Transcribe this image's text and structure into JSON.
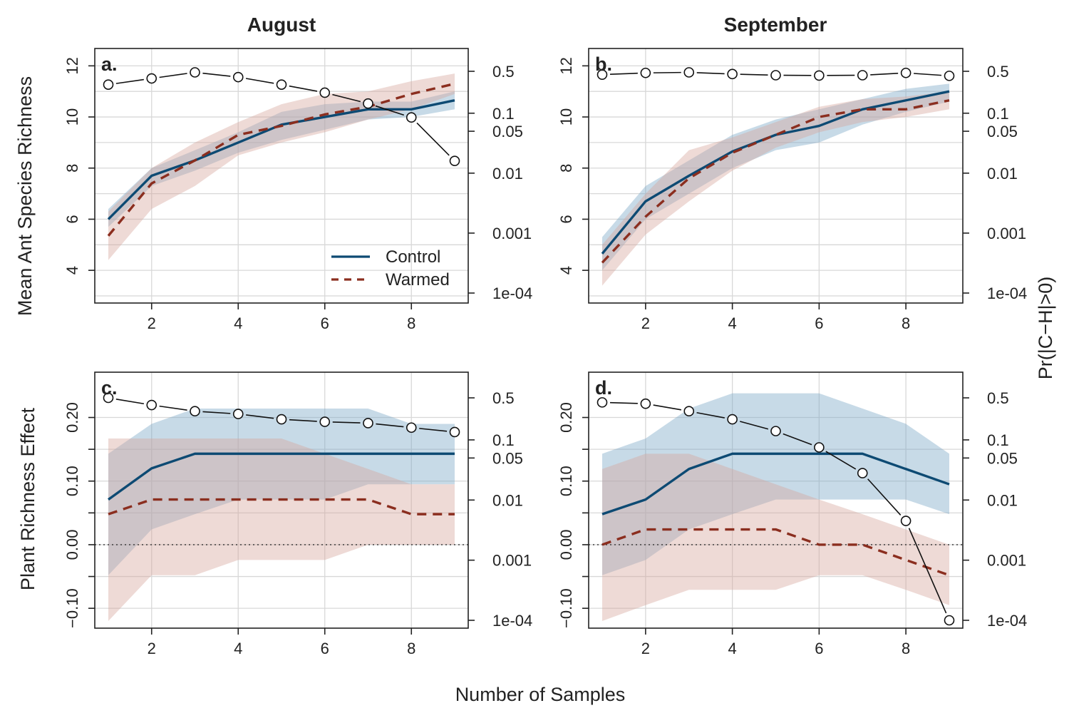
{
  "figure": {
    "xlabel": "Number of Samples",
    "right_axis_label": "Pr(|C−H|>0)",
    "column_titles": [
      "August",
      "September"
    ],
    "legend": {
      "placement": "bottom-right of panel a",
      "entries": [
        {
          "name": "Control",
          "style": "solid"
        },
        {
          "name": "Warmed",
          "style": "dashed"
        }
      ]
    },
    "colors": {
      "control": "#0d4a73",
      "warmed": "#8b2e1f",
      "control_band": "#7aa8c6",
      "warmed_band": "#d7a79e",
      "probability": "#111111",
      "grid": "#d8d8d8"
    }
  },
  "chart_data": [
    {
      "panel": "a.",
      "type": "line",
      "title": "August",
      "ylabel": "Mean Ant Species Richness",
      "x": [
        1,
        2,
        3,
        4,
        5,
        6,
        7,
        8,
        9
      ],
      "xlim": [
        1,
        9
      ],
      "xticks": [
        2,
        4,
        6,
        8
      ],
      "ylim": [
        3,
        12.4
      ],
      "yticks": [
        4,
        6,
        8,
        10,
        12
      ],
      "grid": true,
      "y2_scale": "log",
      "y2_ticks": [
        0.0001,
        0.001,
        0.01,
        0.05,
        0.1,
        0.5
      ],
      "y2_tick_labels": [
        "1e-04",
        "0.001",
        "0.01",
        "0.05",
        "0.1",
        "0.5"
      ],
      "series": [
        {
          "name": "Control",
          "values": [
            6.0,
            7.7,
            8.3,
            9.0,
            9.7,
            10.0,
            10.3,
            10.3,
            10.65
          ],
          "lower": [
            5.7,
            7.3,
            7.9,
            8.6,
            9.1,
            9.5,
            9.9,
            10.0,
            10.3
          ],
          "upper": [
            6.4,
            8.0,
            8.7,
            9.4,
            10.2,
            10.5,
            10.6,
            10.6,
            11.0
          ]
        },
        {
          "name": "Warmed",
          "values": [
            5.35,
            7.4,
            8.3,
            9.3,
            9.65,
            10.1,
            10.4,
            10.9,
            11.3
          ],
          "lower": [
            4.4,
            6.4,
            7.3,
            8.5,
            9.0,
            9.4,
            9.9,
            10.3,
            10.9
          ],
          "upper": [
            6.3,
            8.0,
            9.0,
            9.8,
            10.5,
            10.9,
            11.0,
            11.4,
            11.7
          ]
        },
        {
          "name": "Pr",
          "axis": "right",
          "values": [
            0.3,
            0.38,
            0.48,
            0.4,
            0.3,
            0.22,
            0.145,
            0.085,
            0.016
          ]
        }
      ],
      "reference_line": null
    },
    {
      "panel": "b.",
      "type": "line",
      "title": "September",
      "ylabel": "",
      "x": [
        1,
        2,
        3,
        4,
        5,
        6,
        7,
        8,
        9
      ],
      "xlim": [
        1,
        9
      ],
      "xticks": [
        2,
        4,
        6,
        8
      ],
      "ylim": [
        3,
        12.4
      ],
      "yticks": [
        4,
        6,
        8,
        10,
        12
      ],
      "grid": true,
      "y2_scale": "log",
      "y2_ticks": [
        0.0001,
        0.001,
        0.01,
        0.05,
        0.1,
        0.5
      ],
      "y2_tick_labels": [
        "1e-04",
        "0.001",
        "0.01",
        "0.05",
        "0.1",
        "0.5"
      ],
      "series": [
        {
          "name": "Control",
          "values": [
            4.65,
            6.7,
            7.7,
            8.65,
            9.3,
            9.65,
            10.3,
            10.65,
            11.0
          ],
          "lower": [
            4.0,
            6.0,
            7.0,
            8.0,
            8.7,
            9.0,
            9.7,
            10.2,
            10.6
          ],
          "upper": [
            5.3,
            7.3,
            8.3,
            9.3,
            9.9,
            10.3,
            10.7,
            11.1,
            11.3
          ]
        },
        {
          "name": "Warmed",
          "values": [
            4.3,
            6.1,
            7.6,
            8.6,
            9.3,
            10.0,
            10.3,
            10.3,
            10.65
          ],
          "lower": [
            3.4,
            5.4,
            6.7,
            7.9,
            8.8,
            9.4,
            9.8,
            10.0,
            10.3
          ],
          "upper": [
            5.0,
            7.0,
            8.7,
            9.2,
            9.8,
            10.4,
            10.7,
            10.8,
            11.0
          ]
        },
        {
          "name": "Pr",
          "axis": "right",
          "values": [
            0.44,
            0.47,
            0.48,
            0.45,
            0.43,
            0.425,
            0.43,
            0.47,
            0.42
          ]
        }
      ],
      "reference_line": null
    },
    {
      "panel": "c.",
      "type": "line",
      "title": "",
      "ylabel": "Plant Richness Effect",
      "x": [
        1,
        2,
        3,
        4,
        5,
        6,
        7,
        8,
        9
      ],
      "xlim": [
        1,
        9
      ],
      "xticks": [
        2,
        4,
        6,
        8
      ],
      "ylim": [
        -0.12,
        0.26
      ],
      "yticks": [
        -0.1,
        0.0,
        0.1,
        0.2
      ],
      "yticks_minor": [
        -0.05,
        0.05,
        0.15
      ],
      "ytick_labels": [
        "−0.10",
        "0.00",
        "0.10",
        "0.20"
      ],
      "grid": true,
      "y2_scale": "log",
      "y2_ticks": [
        0.0001,
        0.001,
        0.01,
        0.05,
        0.1,
        0.5
      ],
      "y2_tick_labels": [
        "1e-04",
        "0.001",
        "0.01",
        "0.05",
        "0.1",
        "0.5"
      ],
      "series": [
        {
          "name": "Control",
          "values": [
            0.071,
            0.12,
            0.143,
            0.143,
            0.143,
            0.143,
            0.143,
            0.143,
            0.143
          ],
          "lower": [
            -0.048,
            0.024,
            0.048,
            0.071,
            0.071,
            0.071,
            0.095,
            0.095,
            0.095
          ],
          "upper": [
            0.143,
            0.19,
            0.214,
            0.214,
            0.214,
            0.214,
            0.214,
            0.19,
            0.19
          ]
        },
        {
          "name": "Warmed",
          "values": [
            0.048,
            0.071,
            0.071,
            0.071,
            0.071,
            0.071,
            0.071,
            0.048,
            0.048
          ],
          "lower": [
            -0.12,
            -0.048,
            -0.048,
            -0.024,
            -0.024,
            -0.024,
            0.0,
            0.0,
            0.0
          ],
          "upper": [
            0.167,
            0.167,
            0.167,
            0.167,
            0.167,
            0.143,
            0.119,
            0.095,
            0.095
          ]
        },
        {
          "name": "Pr",
          "axis": "right",
          "values": [
            0.5,
            0.38,
            0.3,
            0.27,
            0.22,
            0.2,
            0.19,
            0.16,
            0.135
          ]
        }
      ],
      "reference_line": {
        "y": 0.0,
        "style": "dotted"
      }
    },
    {
      "panel": "d.",
      "type": "line",
      "title": "",
      "ylabel": "",
      "x": [
        1,
        2,
        3,
        4,
        5,
        6,
        7,
        8,
        9
      ],
      "xlim": [
        1,
        9
      ],
      "xticks": [
        2,
        4,
        6,
        8
      ],
      "ylim": [
        -0.12,
        0.26
      ],
      "yticks": [
        -0.1,
        0.0,
        0.1,
        0.2
      ],
      "yticks_minor": [
        -0.05,
        0.05,
        0.15
      ],
      "ytick_labels": [
        "−0.10",
        "0.00",
        "0.10",
        "0.20"
      ],
      "grid": true,
      "y2_scale": "log",
      "y2_ticks": [
        0.0001,
        0.001,
        0.01,
        0.05,
        0.1,
        0.5
      ],
      "y2_tick_labels": [
        "1e-04",
        "0.001",
        "0.01",
        "0.05",
        "0.1",
        "0.5"
      ],
      "series": [
        {
          "name": "Control",
          "values": [
            0.048,
            0.071,
            0.119,
            0.143,
            0.143,
            0.143,
            0.143,
            0.119,
            0.095
          ],
          "lower": [
            -0.048,
            -0.024,
            0.024,
            0.048,
            0.071,
            0.071,
            0.071,
            0.071,
            0.048
          ],
          "upper": [
            0.143,
            0.167,
            0.214,
            0.238,
            0.238,
            0.238,
            0.214,
            0.19,
            0.143
          ]
        },
        {
          "name": "Warmed",
          "values": [
            0.0,
            0.024,
            0.024,
            0.024,
            0.024,
            0.0,
            0.0,
            -0.024,
            -0.048
          ],
          "lower": [
            -0.12,
            -0.095,
            -0.071,
            -0.071,
            -0.071,
            -0.048,
            -0.048,
            -0.071,
            -0.095
          ],
          "upper": [
            0.119,
            0.143,
            0.143,
            0.119,
            0.095,
            0.071,
            0.048,
            0.024,
            0.0
          ]
        },
        {
          "name": "Pr",
          "axis": "right",
          "values": [
            0.42,
            0.4,
            0.3,
            0.22,
            0.14,
            0.075,
            0.028,
            0.0045,
            0.0001
          ]
        }
      ],
      "reference_line": {
        "y": 0.0,
        "style": "dotted"
      }
    }
  ]
}
